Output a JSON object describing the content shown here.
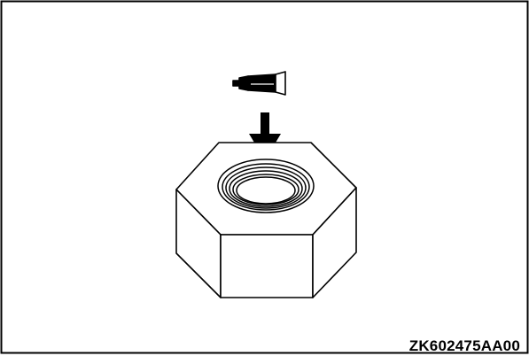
{
  "figure": {
    "code": "ZK602475AA00"
  },
  "colors": {
    "line": "#000000",
    "background": "#ffffff"
  },
  "icons": {
    "sealant_tube": "sealant-tube-icon",
    "apply_arrow": "down-arrow-icon"
  }
}
